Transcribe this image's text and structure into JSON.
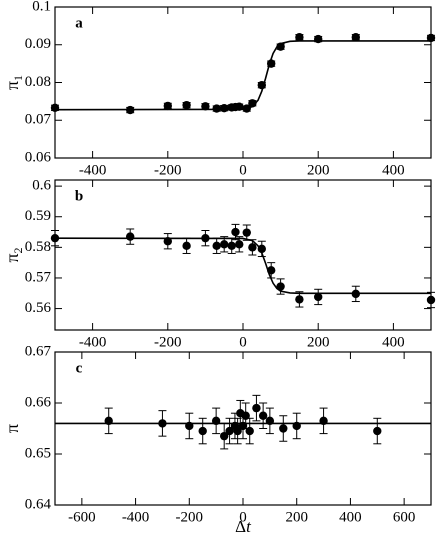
{
  "chart_data": [
    {
      "type": "scatter",
      "annotation": "a",
      "ylabel": {
        "text": "π",
        "subscript": "1"
      },
      "xlim": [
        -500,
        500
      ],
      "xticks": [
        -400,
        -200,
        0,
        200,
        400
      ],
      "ylim": [
        0.06,
        0.1
      ],
      "yticks": [
        0.06,
        0.07,
        0.08,
        0.09,
        0.1
      ],
      "series": [
        {
          "style": "points",
          "color": "#000000",
          "x": [
            -500,
            -300,
            -200,
            -150,
            -100,
            -70,
            -50,
            -30,
            -20,
            -10,
            10,
            25,
            50,
            75,
            100,
            150,
            200,
            300,
            500
          ],
          "values": [
            0.0733,
            0.0727,
            0.0738,
            0.074,
            0.0737,
            0.0731,
            0.0732,
            0.0734,
            0.0735,
            0.0736,
            0.0731,
            0.0745,
            0.0793,
            0.085,
            0.0895,
            0.092,
            0.0915,
            0.092,
            0.0918
          ],
          "errors": [
            0.0007,
            0.0007,
            0.0007,
            0.0007,
            0.0007,
            0.0007,
            0.0007,
            0.0007,
            0.0007,
            0.0007,
            0.0007,
            0.0007,
            0.0007,
            0.0007,
            0.0007,
            0.0007,
            0.0007,
            0.0007,
            0.0007
          ]
        },
        {
          "style": "line",
          "color": "#000000",
          "x": [
            -500,
            0,
            25,
            40,
            50,
            60,
            70,
            80,
            90,
            100,
            125,
            150,
            500
          ],
          "values": [
            0.0728,
            0.0729,
            0.0736,
            0.0753,
            0.0777,
            0.0811,
            0.0848,
            0.0877,
            0.0894,
            0.0903,
            0.0909,
            0.091,
            0.091
          ]
        }
      ]
    },
    {
      "type": "scatter",
      "annotation": "b",
      "ylabel": {
        "text": "π",
        "subscript": "2"
      },
      "xlim": [
        -500,
        500
      ],
      "xticks": [
        -400,
        -200,
        0,
        200,
        400
      ],
      "ylim": [
        0.553,
        0.602
      ],
      "yticks": [
        0.56,
        0.57,
        0.58,
        0.59,
        0.6
      ],
      "series": [
        {
          "style": "points",
          "color": "#000000",
          "x": [
            -500,
            -300,
            -200,
            -150,
            -100,
            -70,
            -50,
            -30,
            -20,
            -10,
            10,
            25,
            50,
            75,
            100,
            150,
            200,
            300,
            500
          ],
          "values": [
            0.583,
            0.5835,
            0.582,
            0.5805,
            0.583,
            0.5805,
            0.581,
            0.5805,
            0.585,
            0.581,
            0.5848,
            0.58,
            0.5795,
            0.5725,
            0.5672,
            0.563,
            0.5638,
            0.5648,
            0.5628
          ],
          "errors": [
            0.0025,
            0.0025,
            0.0025,
            0.0025,
            0.0025,
            0.0025,
            0.0025,
            0.0025,
            0.0025,
            0.0025,
            0.0025,
            0.0025,
            0.0025,
            0.0025,
            0.0025,
            0.0025,
            0.0025,
            0.0025,
            0.0025
          ]
        },
        {
          "style": "line",
          "color": "#000000",
          "x": [
            -500,
            0,
            25,
            40,
            50,
            60,
            70,
            80,
            90,
            100,
            125,
            150,
            500
          ],
          "values": [
            0.583,
            0.5829,
            0.5822,
            0.5805,
            0.5782,
            0.5748,
            0.5711,
            0.5683,
            0.5666,
            0.5657,
            0.5651,
            0.565,
            0.565
          ]
        }
      ]
    },
    {
      "type": "scatter",
      "annotation": "c",
      "ylabel": {
        "text": "π"
      },
      "xlabel": {
        "text": "Δ",
        "italic": "t"
      },
      "xlim": [
        -700,
        700
      ],
      "xticks": [
        -600,
        -400,
        -200,
        0,
        200,
        400,
        600
      ],
      "ylim": [
        0.64,
        0.67
      ],
      "yticks": [
        0.64,
        0.65,
        0.66,
        0.67
      ],
      "series": [
        {
          "style": "points",
          "color": "#000000",
          "x": [
            -500,
            -300,
            -200,
            -150,
            -100,
            -70,
            -50,
            -30,
            -20,
            -10,
            0,
            10,
            25,
            50,
            75,
            100,
            150,
            200,
            300,
            500
          ],
          "values": [
            0.6565,
            0.656,
            0.6555,
            0.6545,
            0.6565,
            0.6535,
            0.6545,
            0.6555,
            0.6545,
            0.658,
            0.6555,
            0.6575,
            0.6545,
            0.659,
            0.6575,
            0.6565,
            0.655,
            0.6555,
            0.6565,
            0.6545
          ],
          "errors": [
            0.0025,
            0.0025,
            0.0025,
            0.0025,
            0.0025,
            0.0025,
            0.0025,
            0.0025,
            0.0025,
            0.0025,
            0.0025,
            0.0025,
            0.0025,
            0.0025,
            0.0025,
            0.0025,
            0.0025,
            0.0025,
            0.0025,
            0.0025
          ]
        },
        {
          "style": "line",
          "color": "#000000",
          "x": [
            -700,
            700
          ],
          "values": [
            0.656,
            0.656
          ]
        }
      ]
    }
  ]
}
